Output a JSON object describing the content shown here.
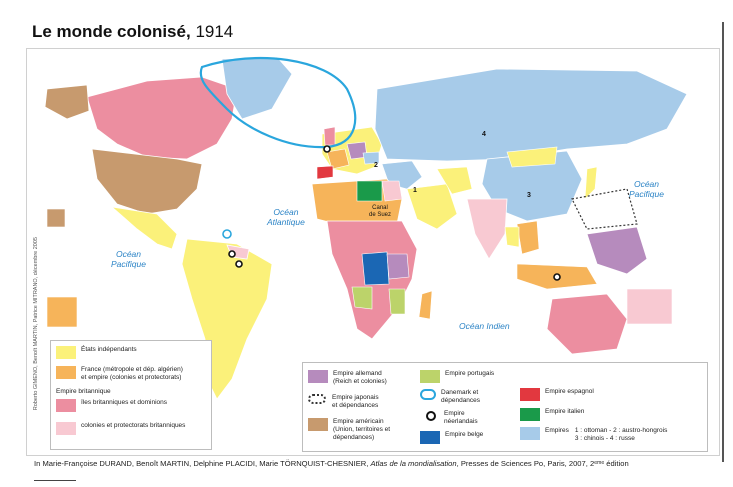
{
  "title": {
    "main": "Le monde colonisé,",
    "year": "1914"
  },
  "credit": "Roberto GIMENO, Benoît MARTIN, Patrice MITRANO, décembre 2005",
  "oceans": {
    "atlantique": [
      "Océan",
      "Atlantique"
    ],
    "pacifique_w": [
      "Océan",
      "Pacifique"
    ],
    "pacifique_e": [
      "Océan",
      "Pacifique"
    ],
    "indien": "Océan Indien"
  },
  "map_labels": {
    "n1": "1",
    "n2": "2",
    "n3": "3",
    "n4": "4",
    "suez": [
      "Canal",
      "de Suez"
    ]
  },
  "legend": {
    "left": {
      "independants": "États indépendants",
      "france": [
        "France (métropole et dép. algérien)",
        "et empire (colonies et protectorats)"
      ],
      "brit_head": "Empire britannique",
      "brit_iles": "îles britanniques et dominions",
      "brit_col": "colonies et protectorats britanniques"
    },
    "right": {
      "allemand": [
        "Empire allemand",
        "(Reich et colonies)"
      ],
      "japonais": [
        "Empire japonais",
        "et dépendances"
      ],
      "americain": [
        "Empire américain",
        "(Union, territoires et",
        "dépendances)"
      ],
      "portugais": "Empire portugais",
      "danemark": [
        "Danemark et",
        "dépendances"
      ],
      "neerlandais": [
        "Empire",
        "néerlandais"
      ],
      "belge": "Empire belge",
      "espagnol": "Empire espagnol",
      "italien": "Empire italien",
      "empires_label": "Empires",
      "empires_list": [
        "1 : ottoman - 2 : austro-hongrois",
        "3 : chinois   - 4 : russe"
      ]
    }
  },
  "source": {
    "prefix": "In Marie-Françoise DURAND, Benoît MARTIN, Delphine PLACIDI, Marie TÖRNQUIST-CHESNIER, ",
    "book": "Atlas de la mondialisation",
    "suffix": ", Presses de Sciences Po, Paris, 2007, 2ᵉᵐᵉ édition"
  },
  "colors": {
    "independant": "#fbf17a",
    "france": "#f6b45a",
    "brit_dom": "#ec8ea0",
    "brit_col": "#f8c9d2",
    "allemand": "#b68bbd",
    "americain": "#c79a6e",
    "portugais": "#bcd36a",
    "danemark": "#2aa6dd",
    "belge": "#1b67b4",
    "espagnol": "#e2383f",
    "italien": "#1a9a4a",
    "empires": "#a7cbe9"
  }
}
